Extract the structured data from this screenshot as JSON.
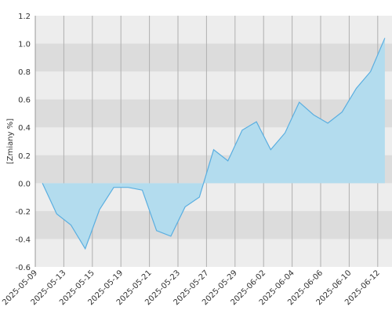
{
  "chart_data": {
    "type": "area",
    "y_label": "[Zmiany %]",
    "xticks": [
      "2025-05-09",
      "2025-05-13",
      "2025-05-15",
      "2025-05-19",
      "2025-05-21",
      "2025-05-23",
      "2025-05-27",
      "2025-05-29",
      "2025-06-02",
      "2025-06-04",
      "2025-06-06",
      "2025-06-10",
      "2025-06-12"
    ],
    "values": [
      0.0,
      -0.22,
      -0.3,
      -0.47,
      -0.19,
      -0.03,
      -0.03,
      -0.05,
      -0.34,
      -0.38,
      -0.17,
      -0.1,
      0.24,
      0.16,
      0.38,
      0.44,
      0.24,
      0.36,
      0.58,
      0.49,
      0.43,
      0.51,
      0.68,
      0.8,
      1.04
    ],
    "color": "#5aaee0",
    "fill": "#b3dcee",
    "ylim": [
      -0.6,
      1.2
    ],
    "yticks": [
      1.2,
      {
        "value": 1,
        "label": "1.0"
      },
      0.8,
      0.6,
      0.4,
      0.2,
      {
        "value": 0,
        "label": "0.0"
      },
      -0.2,
      -0.4,
      -0.6
    ],
    "grid": true
  }
}
